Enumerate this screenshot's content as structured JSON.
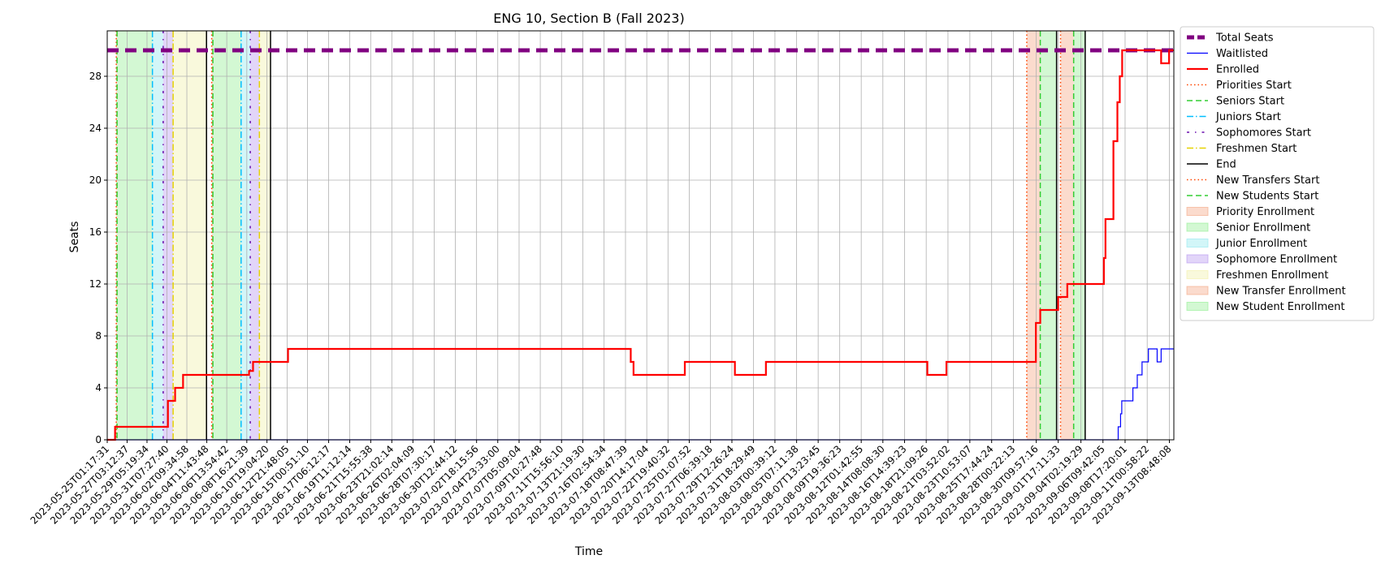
{
  "chart_data": {
    "type": "line",
    "title": "ENG 10, Section B (Fall 2023)",
    "xlabel": "Time",
    "ylabel": "Seats",
    "ylim": [
      0,
      31.5
    ],
    "xlim": [
      "2023-05-25T01:17:31",
      "2023-09-13T20:00:00"
    ],
    "grid": true,
    "legend_position": "outside-right",
    "x_tick_labels": [
      "2023-05-25T01:17:31",
      "2023-05-27T03:12:37",
      "2023-05-29T05:19:34",
      "2023-05-31T07:27:40",
      "2023-06-02T09:34:58",
      "2023-06-04T11:43:48",
      "2023-06-06T13:54:42",
      "2023-06-08T16:21:39",
      "2023-06-10T19:04:20",
      "2023-06-12T21:48:05",
      "2023-06-15T00:51:10",
      "2023-06-17T06:12:17",
      "2023-06-19T11:12:14",
      "2023-06-21T15:55:38",
      "2023-06-23T21:02:14",
      "2023-06-26T02:04:09",
      "2023-06-28T07:30:17",
      "2023-06-30T12:44:12",
      "2023-07-02T18:15:56",
      "2023-07-04T23:33:00",
      "2023-07-07T05:09:04",
      "2023-07-09T10:27:48",
      "2023-07-11T15:56:10",
      "2023-07-13T21:19:30",
      "2023-07-16T02:54:34",
      "2023-07-18T08:47:39",
      "2023-07-20T14:17:04",
      "2023-07-22T19:40:32",
      "2023-07-25T01:07:52",
      "2023-07-27T06:39:18",
      "2023-07-29T12:26:24",
      "2023-07-31T18:29:49",
      "2023-08-03T00:39:12",
      "2023-08-05T07:11:38",
      "2023-08-07T13:23:45",
      "2023-08-09T19:36:23",
      "2023-08-12T01:42:55",
      "2023-08-14T08:08:30",
      "2023-08-16T14:39:23",
      "2023-08-18T21:09:26",
      "2023-08-21T03:52:02",
      "2023-08-23T10:53:07",
      "2023-08-25T17:44:24",
      "2023-08-28T00:22:13",
      "2023-08-30T09:57:16",
      "2023-09-01T17:11:33",
      "2023-09-04T02:19:29",
      "2023-09-06T09:42:05",
      "2023-09-08T17:20:01",
      "2023-09-11T00:58:22",
      "2023-09-13T08:48:08"
    ],
    "y_ticks": [
      0,
      4,
      8,
      12,
      16,
      20,
      24,
      28
    ],
    "series": [
      {
        "name": "Total Seats",
        "color": "#800080",
        "style": "dashed-thick",
        "x": [
          "2023-05-25T01:17:31",
          "2023-09-13T20:00:00"
        ],
        "y": [
          30,
          30
        ]
      },
      {
        "name": "Waitlisted",
        "color": "#0000ff",
        "style": "solid-thin",
        "x": [
          "2023-05-25T01:17:31",
          "2023-09-08T00:00:00",
          "2023-09-08T02:00:00",
          "2023-09-08T06:00:00",
          "2023-09-08T09:00:00",
          "2023-09-09T05:00:00",
          "2023-09-09T13:00:00",
          "2023-09-10T00:00:00",
          "2023-09-10T12:00:00",
          "2023-09-11T04:00:00",
          "2023-09-11T12:00:00",
          "2023-09-12T02:00:00",
          "2023-09-12T12:00:00",
          "2023-09-13T20:00:00"
        ],
        "y": [
          0,
          1,
          1,
          2,
          3,
          3,
          4,
          5,
          6,
          7,
          7,
          6,
          7,
          7
        ]
      },
      {
        "name": "Enrolled",
        "color": "#ff0000",
        "style": "solid-thick",
        "x": [
          "2023-05-25T01:17:31",
          "2023-05-25T05:00:00",
          "2023-05-25T21:00:00",
          "2023-05-31T10:00:00",
          "2023-05-31T18:00:00",
          "2023-06-01T04:00:00",
          "2023-06-01T14:00:00",
          "2023-06-02T00:00:00",
          "2023-06-04T00:00:00",
          "2023-06-08T22:00:00",
          "2023-06-09T08:00:00",
          "2023-06-13T00:00:00",
          "2023-07-18T22:00:00",
          "2023-07-19T05:00:00",
          "2023-07-24T14:00:00",
          "2023-07-29T20:00:00",
          "2023-08-02T02:00:00",
          "2023-08-08T00:00:00",
          "2023-08-19T00:00:00",
          "2023-08-21T00:00:00",
          "2023-08-30T09:00:00",
          "2023-08-30T20:00:00",
          "2023-09-01T17:00:00",
          "2023-09-02T16:00:00",
          "2023-09-05T00:00:00",
          "2023-09-06T12:00:00",
          "2023-09-06T16:00:00",
          "2023-09-07T00:00:00",
          "2023-09-07T12:00:00",
          "2023-09-07T22:00:00",
          "2023-09-08T04:00:00",
          "2023-09-08T10:00:00",
          "2023-09-12T05:00:00",
          "2023-09-12T12:00:00",
          "2023-09-13T00:00:00",
          "2023-09-13T08:00:00",
          "2023-09-13T20:00:00"
        ],
        "y": [
          0,
          0,
          1,
          3,
          3,
          4,
          4,
          5,
          5,
          5.3,
          6,
          7,
          6,
          5,
          6,
          5,
          6,
          6,
          5,
          6,
          9,
          10,
          11,
          12,
          12,
          14,
          17,
          17,
          23,
          26,
          28,
          30,
          30,
          29,
          29,
          30,
          30
        ]
      }
    ],
    "event_lines": [
      {
        "name": "Priorities Start",
        "color": "#ff4500",
        "style": "dotted",
        "dates": [
          "2023-05-26T00:00:00",
          "2023-06-05T00:00:00"
        ]
      },
      {
        "name": "Seniors Start",
        "color": "#32cd32",
        "style": "dashed",
        "dates": [
          "2023-05-26T02:00:00",
          "2023-06-05T03:00:00"
        ]
      },
      {
        "name": "Juniors Start",
        "color": "#00bfff",
        "style": "dashdot",
        "dates": [
          "2023-05-29T19:00:00",
          "2023-06-08T02:00:00"
        ]
      },
      {
        "name": "Sophomores Start",
        "color": "#6a0dad",
        "style": "dashdot-loose",
        "dates": [
          "2023-05-30T22:00:00",
          "2023-06-09T01:00:00"
        ]
      },
      {
        "name": "Freshmen Start",
        "color": "#e6d200",
        "style": "dashdot",
        "dates": [
          "2023-05-31T23:00:00",
          "2023-06-10T00:00:00"
        ]
      },
      {
        "name": "End",
        "color": "#000000",
        "style": "solid",
        "dates": [
          "2023-06-04T11:00:00",
          "2023-06-11T04:00:00",
          "2023-09-01T13:00:00",
          "2023-09-04T13:00:00"
        ]
      },
      {
        "name": "New Transfers Start",
        "color": "#ff4500",
        "style": "dotted",
        "dates": [
          "2023-08-29T10:00:00",
          "2023-09-01T23:00:00"
        ]
      },
      {
        "name": "New Students Start",
        "color": "#32cd32",
        "style": "dashed",
        "dates": [
          "2023-08-30T20:00:00",
          "2023-09-03T08:00:00"
        ]
      }
    ],
    "spans": [
      {
        "name": "Priority Enrollment",
        "color": "#f4a582",
        "ranges": [
          [
            "2023-05-26T00:00:00",
            "2023-05-26T02:00:00"
          ],
          [
            "2023-06-05T00:00:00",
            "2023-06-05T03:00:00"
          ]
        ]
      },
      {
        "name": "Senior Enrollment",
        "color": "#90ee90",
        "ranges": [
          [
            "2023-05-26T02:00:00",
            "2023-05-29T19:00:00"
          ],
          [
            "2023-06-05T03:00:00",
            "2023-06-08T02:00:00"
          ]
        ]
      },
      {
        "name": "Junior Enrollment",
        "color": "#8fe8ee",
        "ranges": [
          [
            "2023-05-29T19:00:00",
            "2023-05-30T22:00:00"
          ],
          [
            "2023-06-08T02:00:00",
            "2023-06-09T01:00:00"
          ]
        ]
      },
      {
        "name": "Sophomore Enrollment",
        "color": "#b695f0",
        "ranges": [
          [
            "2023-05-30T22:00:00",
            "2023-05-31T23:00:00"
          ],
          [
            "2023-06-09T01:00:00",
            "2023-06-10T00:00:00"
          ]
        ]
      },
      {
        "name": "Freshmen Enrollment",
        "color": "#f1f0a8",
        "ranges": [
          [
            "2023-05-31T23:00:00",
            "2023-06-04T11:00:00"
          ],
          [
            "2023-06-10T00:00:00",
            "2023-06-11T04:00:00"
          ]
        ]
      },
      {
        "name": "New Transfer Enrollment",
        "color": "#f4a582",
        "ranges": [
          [
            "2023-08-29T10:00:00",
            "2023-08-30T20:00:00"
          ],
          [
            "2023-09-01T23:00:00",
            "2023-09-03T08:00:00"
          ]
        ]
      },
      {
        "name": "New Student Enrollment",
        "color": "#90ee90",
        "ranges": [
          [
            "2023-08-30T20:00:00",
            "2023-09-01T13:00:00"
          ],
          [
            "2023-09-03T08:00:00",
            "2023-09-04T13:00:00"
          ]
        ]
      }
    ],
    "legend": [
      "Total Seats",
      "Waitlisted",
      "Enrolled",
      "Priorities Start",
      "Seniors Start",
      "Juniors Start",
      "Sophomores Start",
      "Freshmen Start",
      "End",
      "New Transfers Start",
      "New Students Start",
      "Priority Enrollment",
      "Senior Enrollment",
      "Junior Enrollment",
      "Sophomore Enrollment",
      "Freshmen Enrollment",
      "New Transfer Enrollment",
      "New Student Enrollment"
    ]
  }
}
